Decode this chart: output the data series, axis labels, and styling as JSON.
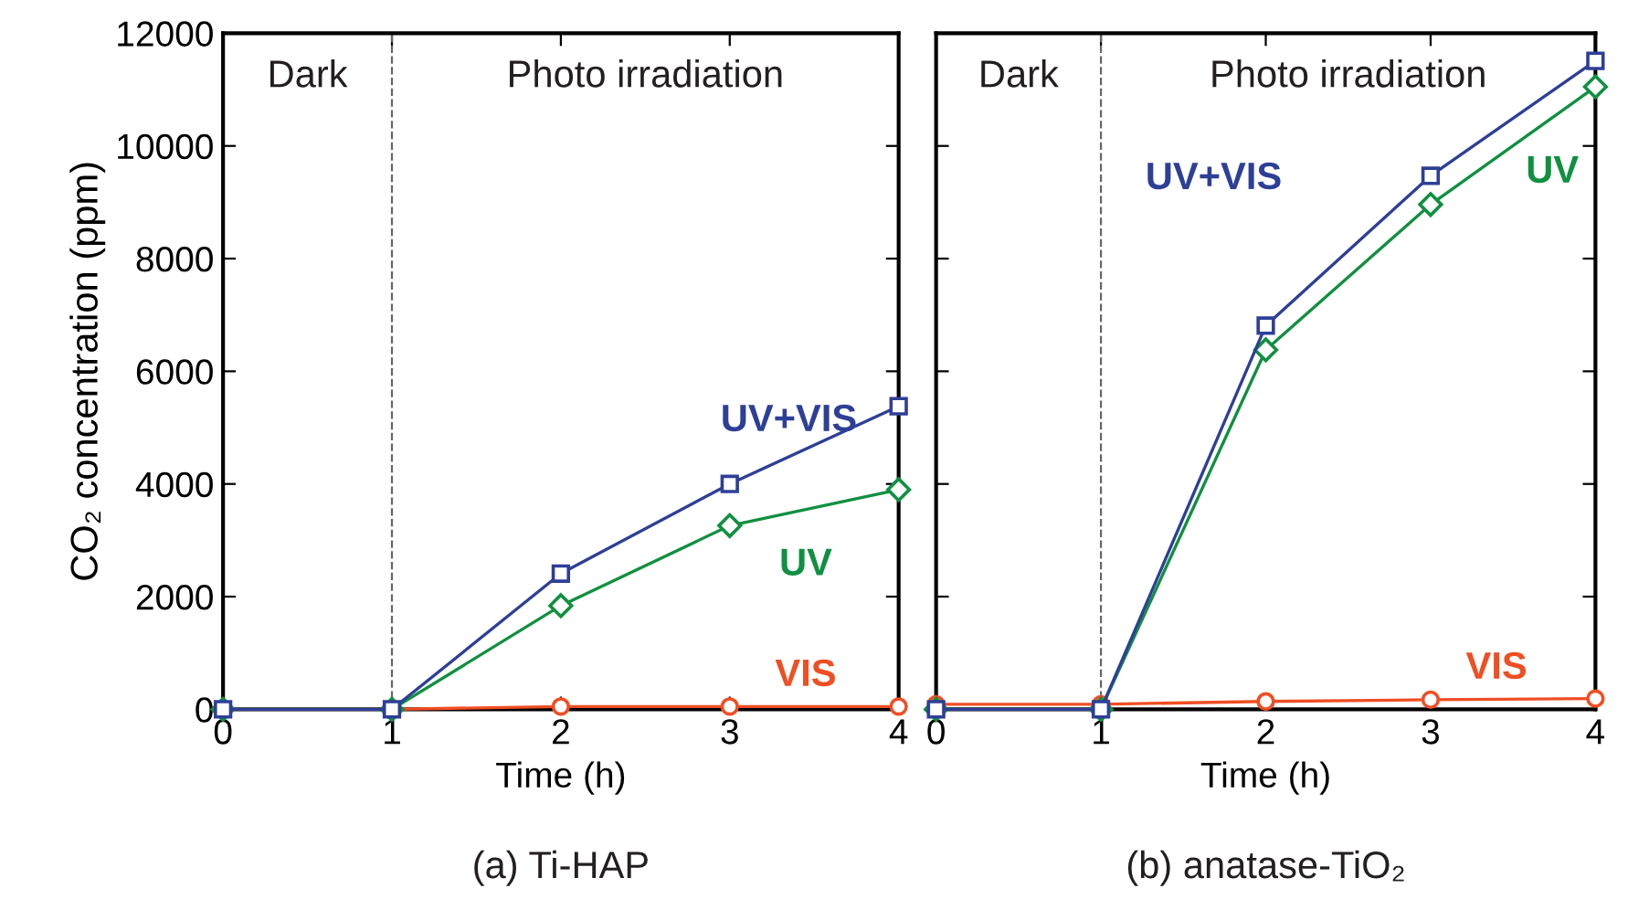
{
  "chart_data": [
    {
      "type": "line",
      "title": "(a) Ti-HAP",
      "xlabel": "Time (h)",
      "ylabel": "CO₂ concentration (ppm)",
      "x": [
        0,
        1,
        2,
        3,
        4
      ],
      "xlim": [
        0,
        4
      ],
      "xticks": [
        0,
        1,
        2,
        3,
        4
      ],
      "ylim": [
        0,
        12000
      ],
      "yticks": [
        0,
        2000,
        4000,
        6000,
        8000,
        10000,
        12000
      ],
      "series": [
        {
          "name": "UV+VIS",
          "color": "#2e3f97",
          "marker": "square",
          "values": [
            0,
            0,
            2410,
            4000,
            5380
          ]
        },
        {
          "name": "UV",
          "color": "#109040",
          "marker": "diamond",
          "values": [
            0,
            0,
            1840,
            3260,
            3900
          ]
        },
        {
          "name": "VIS",
          "color": "#f04e23",
          "marker": "circle",
          "values": [
            0,
            0,
            50,
            50,
            50
          ]
        }
      ],
      "ref_lines": [
        {
          "axis": "x",
          "value": 1,
          "color": "#666666",
          "line_style": "dashed"
        }
      ],
      "annotations": [
        "Dark",
        "Photo irradiation"
      ],
      "grid": false,
      "legend": false
    },
    {
      "type": "line",
      "title": "(b) anatase-TiO₂",
      "xlabel": "Time (h)",
      "x": [
        0,
        1,
        2,
        3,
        4
      ],
      "xlim": [
        0,
        4
      ],
      "xticks": [
        0,
        1,
        2,
        3,
        4
      ],
      "ylim": [
        0,
        12000
      ],
      "yticks": [
        0,
        2000,
        4000,
        6000,
        8000,
        10000,
        12000
      ],
      "tick_labels": "x",
      "series": [
        {
          "name": "UV+VIS",
          "color": "#2e3f97",
          "marker": "square",
          "values": [
            0,
            0,
            6810,
            9470,
            11510
          ]
        },
        {
          "name": "UV",
          "color": "#109040",
          "marker": "diamond",
          "values": [
            0,
            0,
            6380,
            8960,
            11050
          ]
        },
        {
          "name": "VIS",
          "color": "#f04e23",
          "marker": "circle",
          "values": [
            90,
            90,
            140,
            170,
            190
          ]
        }
      ],
      "ref_lines": [
        {
          "axis": "x",
          "value": 1,
          "color": "#666666",
          "line_style": "dashed"
        }
      ],
      "annotations": [
        "Dark",
        "Photo irradiation"
      ],
      "grid": false,
      "legend": false
    }
  ]
}
